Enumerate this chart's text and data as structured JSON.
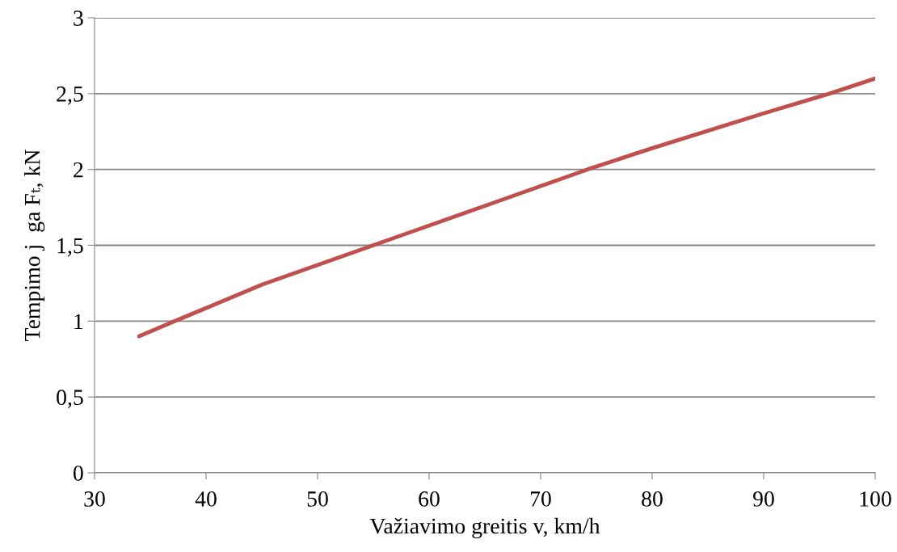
{
  "chart_data": {
    "type": "line",
    "xlabel": "Važiavimo greitis v, km/h",
    "ylabel": "Tempimo j  ga Fₜ, kN",
    "x": [
      34,
      37.2,
      45,
      55,
      65,
      74.2,
      80,
      90,
      95.9,
      100
    ],
    "series": [
      {
        "color": "#c0504d",
        "values": [
          0.9,
          1.0,
          1.24,
          1.5,
          1.76,
          2.0,
          2.14,
          2.37,
          2.5,
          2.6
        ]
      }
    ],
    "xlim": [
      30,
      100
    ],
    "xticks": [
      30,
      40,
      50,
      60,
      70,
      80,
      90,
      100
    ],
    "ylim": [
      0,
      3
    ],
    "yticks": [
      0,
      {
        "value": 0.5,
        "label": "0,5"
      },
      1,
      {
        "value": 1.5,
        "label": "1,5"
      },
      2,
      {
        "value": 2.5,
        "label": "2,5"
      },
      3
    ],
    "grid": "y",
    "line_style": "solid",
    "marker": "none"
  }
}
